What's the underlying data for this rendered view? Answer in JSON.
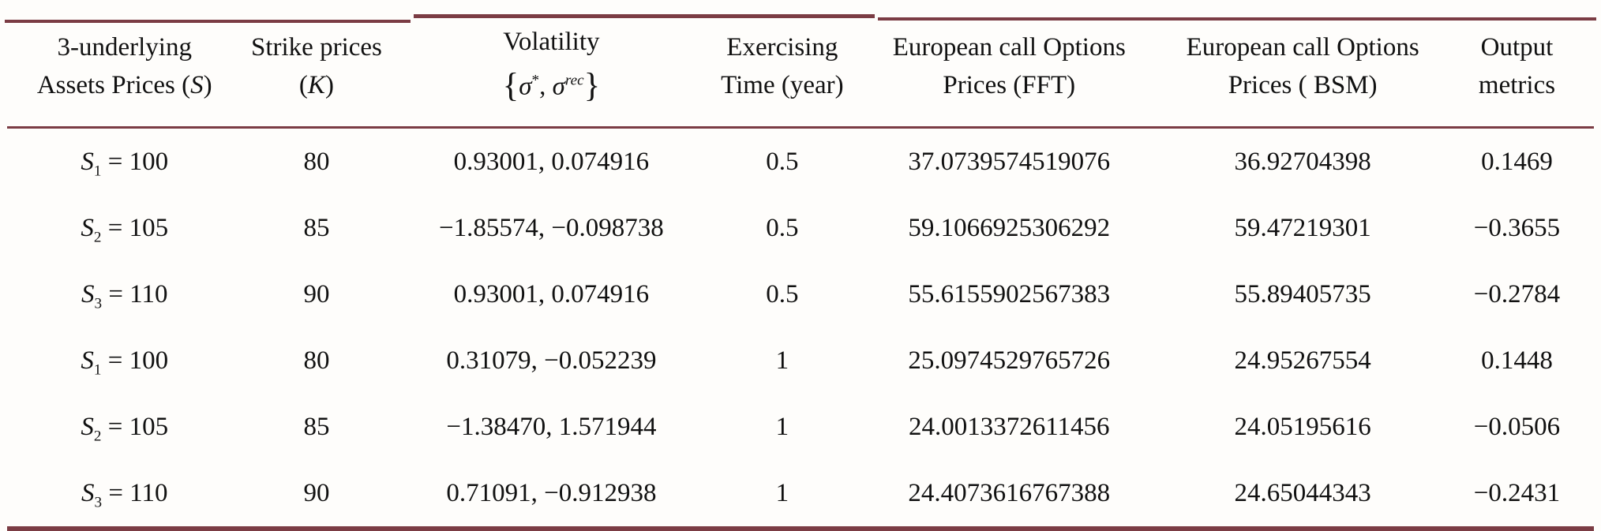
{
  "page": {
    "background_color": "#fefdfb",
    "rule_color": "#7b3c44"
  },
  "table": {
    "columns": [
      {
        "id": "assets",
        "width": "14.8%",
        "line1": [
          {
            "t": "3-underlying",
            "s": "n"
          }
        ],
        "line2": [
          {
            "t": "Assets Prices (",
            "s": "n"
          },
          {
            "t": "S",
            "s": "i"
          },
          {
            "t": ")",
            "s": "n"
          }
        ]
      },
      {
        "id": "strike",
        "width": "9.4%",
        "line1": [
          {
            "t": "Strike prices",
            "s": "n"
          }
        ],
        "line2": [
          {
            "t": "(",
            "s": "n"
          },
          {
            "t": "K",
            "s": "i"
          },
          {
            "t": ")",
            "s": "n"
          }
        ]
      },
      {
        "id": "volatility",
        "width": "20.2%",
        "line1": [
          {
            "t": "Volatility",
            "s": "n"
          }
        ],
        "line2": [
          {
            "t": "{",
            "s": "br"
          },
          {
            "t": "σ",
            "s": "i"
          },
          {
            "t": "*",
            "s": "sup"
          },
          {
            "t": ", ",
            "s": "n"
          },
          {
            "t": "σ",
            "s": "i"
          },
          {
            "t": "rec",
            "s": "supi"
          },
          {
            "t": "}",
            "s": "br"
          }
        ]
      },
      {
        "id": "time",
        "width": "8.9%",
        "line1": [
          {
            "t": "Exercising",
            "s": "n"
          }
        ],
        "line2": [
          {
            "t": "Time (year)",
            "s": "n"
          }
        ]
      },
      {
        "id": "fft",
        "width": "19.7%",
        "line1": [
          {
            "t": "European call Options",
            "s": "n"
          }
        ],
        "line2": [
          {
            "t": "Prices (FFT)",
            "s": "n"
          }
        ]
      },
      {
        "id": "bsm",
        "width": "17.3%",
        "line1": [
          {
            "t": "European call Options",
            "s": "n"
          }
        ],
        "line2": [
          {
            "t": "Prices ( BSM)",
            "s": "n"
          }
        ]
      },
      {
        "id": "output",
        "width": "9.7%",
        "line1": [
          {
            "t": "Output",
            "s": "n"
          }
        ],
        "line2": [
          {
            "t": "metrics",
            "s": "n"
          }
        ]
      }
    ],
    "rows": [
      {
        "asset": [
          {
            "t": "S",
            "s": "i"
          },
          {
            "t": "1",
            "s": "sub"
          },
          {
            "t": " = 100",
            "s": "n"
          }
        ],
        "cells": [
          "80",
          "0.93001, 0.074916",
          "0.5",
          "37.0739574519076",
          "36.92704398",
          "0.1469"
        ]
      },
      {
        "asset": [
          {
            "t": "S",
            "s": "i"
          },
          {
            "t": "2",
            "s": "sub"
          },
          {
            "t": " = 105",
            "s": "n"
          }
        ],
        "cells": [
          "85",
          "−1.85574, −0.098738",
          "0.5",
          "59.1066925306292",
          "59.47219301",
          "−0.3655"
        ]
      },
      {
        "asset": [
          {
            "t": "S",
            "s": "i"
          },
          {
            "t": "3",
            "s": "sub"
          },
          {
            "t": " = 110",
            "s": "n"
          }
        ],
        "cells": [
          "90",
          "0.93001, 0.074916",
          "0.5",
          "55.6155902567383",
          "55.89405735",
          "−0.2784"
        ]
      },
      {
        "asset": [
          {
            "t": "S",
            "s": "i"
          },
          {
            "t": "1",
            "s": "sub"
          },
          {
            "t": " = 100",
            "s": "n"
          }
        ],
        "cells": [
          "80",
          "0.31079, −0.052239",
          "1",
          "25.0974529765726",
          "24.95267554",
          "0.1448"
        ]
      },
      {
        "asset": [
          {
            "t": "S",
            "s": "i"
          },
          {
            "t": "2",
            "s": "sub"
          },
          {
            "t": " = 105",
            "s": "n"
          }
        ],
        "cells": [
          "85",
          "−1.38470, 1.571944",
          "1",
          "24.0013372611456",
          "24.05195616",
          "−0.0506"
        ]
      },
      {
        "asset": [
          {
            "t": "S",
            "s": "i"
          },
          {
            "t": "3",
            "s": "sub"
          },
          {
            "t": " = 110",
            "s": "n"
          }
        ],
        "cells": [
          "90",
          "0.71091, −0.912938",
          "1",
          "24.4073616767388",
          "24.65044343",
          "−0.2431"
        ]
      }
    ]
  }
}
